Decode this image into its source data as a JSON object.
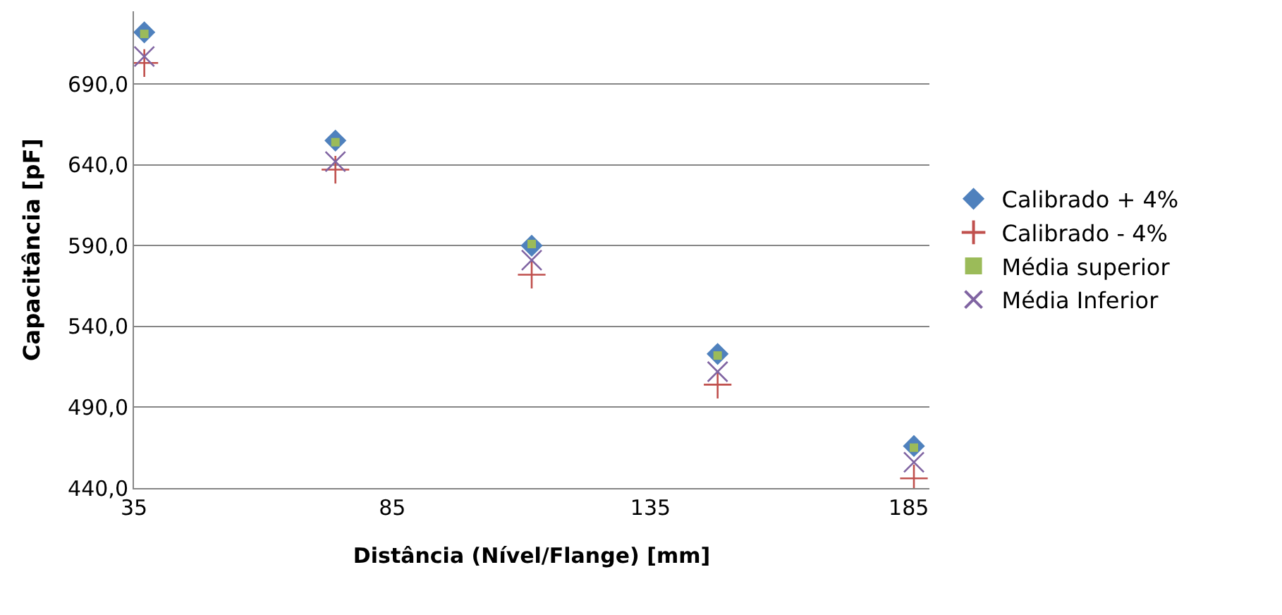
{
  "chart_data": {
    "type": "scatter",
    "xlabel": "Distância (Nível/Flange) [mm]",
    "ylabel": "Capacitância [pF]",
    "x": [
      37,
      74,
      112,
      148,
      186
    ],
    "series": [
      {
        "name": "Calibrado + 4%",
        "color": "#4f81bd",
        "marker": "diamond",
        "values": [
          722,
          655,
          590,
          523,
          466
        ]
      },
      {
        "name": "Calibrado - 4%",
        "color": "#c0504d",
        "marker": "cross",
        "values": [
          703,
          637,
          572,
          504,
          446
        ]
      },
      {
        "name": "Média superior",
        "color": "#9bbb59",
        "marker": "square",
        "values": [
          721,
          654,
          591,
          522,
          465
        ]
      },
      {
        "name": "Média Inferior",
        "color": "#8064a2",
        "marker": "x",
        "values": [
          707,
          642,
          581,
          512,
          456
        ]
      }
    ],
    "xlim": [
      35,
      189
    ],
    "xticks": [
      35,
      85,
      135,
      185
    ],
    "ylim": [
      440,
      735
    ],
    "yticks": [
      {
        "value": 440,
        "label": "440,0"
      },
      {
        "value": 490,
        "label": "490,0"
      },
      {
        "value": 540,
        "label": "540,0"
      },
      {
        "value": 590,
        "label": "590,0"
      },
      {
        "value": 640,
        "label": "640,0"
      },
      {
        "value": 690,
        "label": "690,0"
      }
    ],
    "grid": "y",
    "legend": "right"
  }
}
